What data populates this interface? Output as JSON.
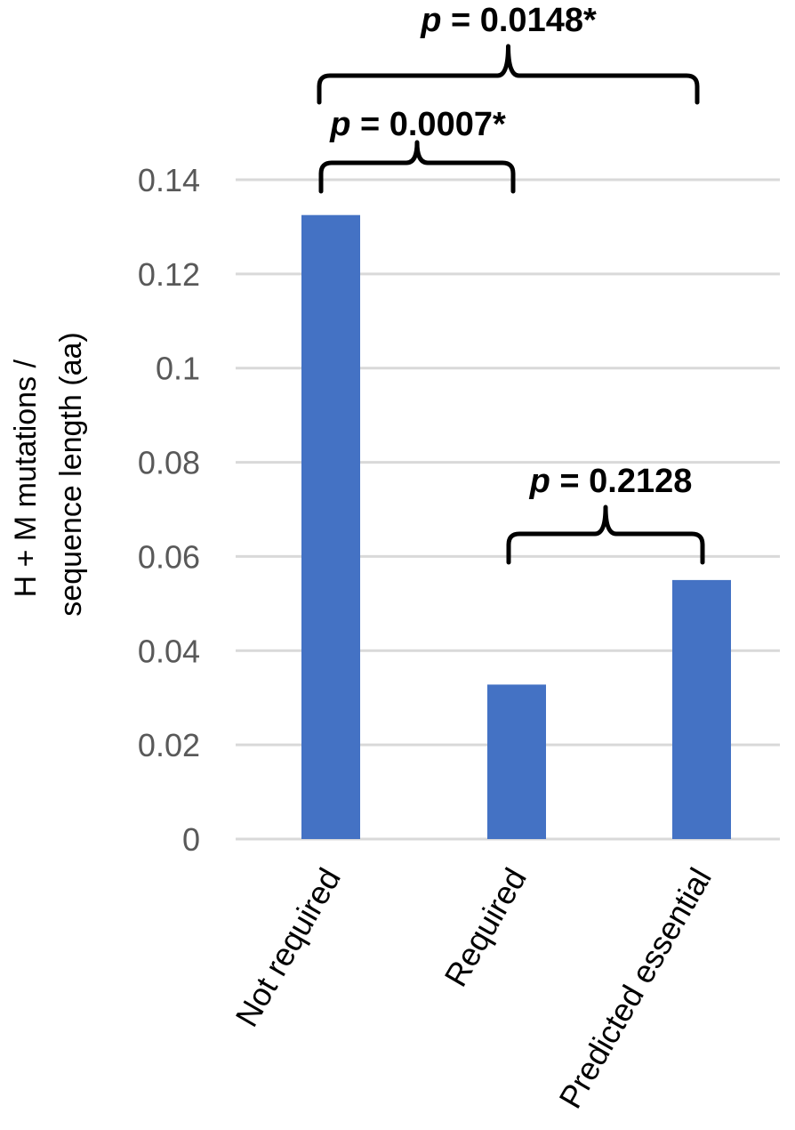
{
  "chart_data": {
    "type": "bar",
    "categories": [
      "Not required",
      "Required",
      "Predicted essential"
    ],
    "values": [
      0.1325,
      0.0328,
      0.055
    ],
    "ylabel_lines": [
      "H + M mutations /",
      "sequence length (aa)"
    ],
    "ylim": [
      0,
      0.14
    ],
    "yticks": [
      "0",
      "0.02",
      "0.04",
      "0.06",
      "0.08",
      "0.1",
      "0.12",
      "0.14"
    ],
    "grid": true,
    "bar_color": "#4472c4",
    "annotations": [
      {
        "label": "p",
        "value": "= 0.0007*",
        "from": "Not required",
        "to": "Required"
      },
      {
        "label": "p",
        "value": "= 0.0148*",
        "from": "Not required",
        "to": "Predicted essential"
      },
      {
        "label": "p",
        "value": "= 0.2128",
        "from": "Required",
        "to": "Predicted essential"
      }
    ]
  }
}
